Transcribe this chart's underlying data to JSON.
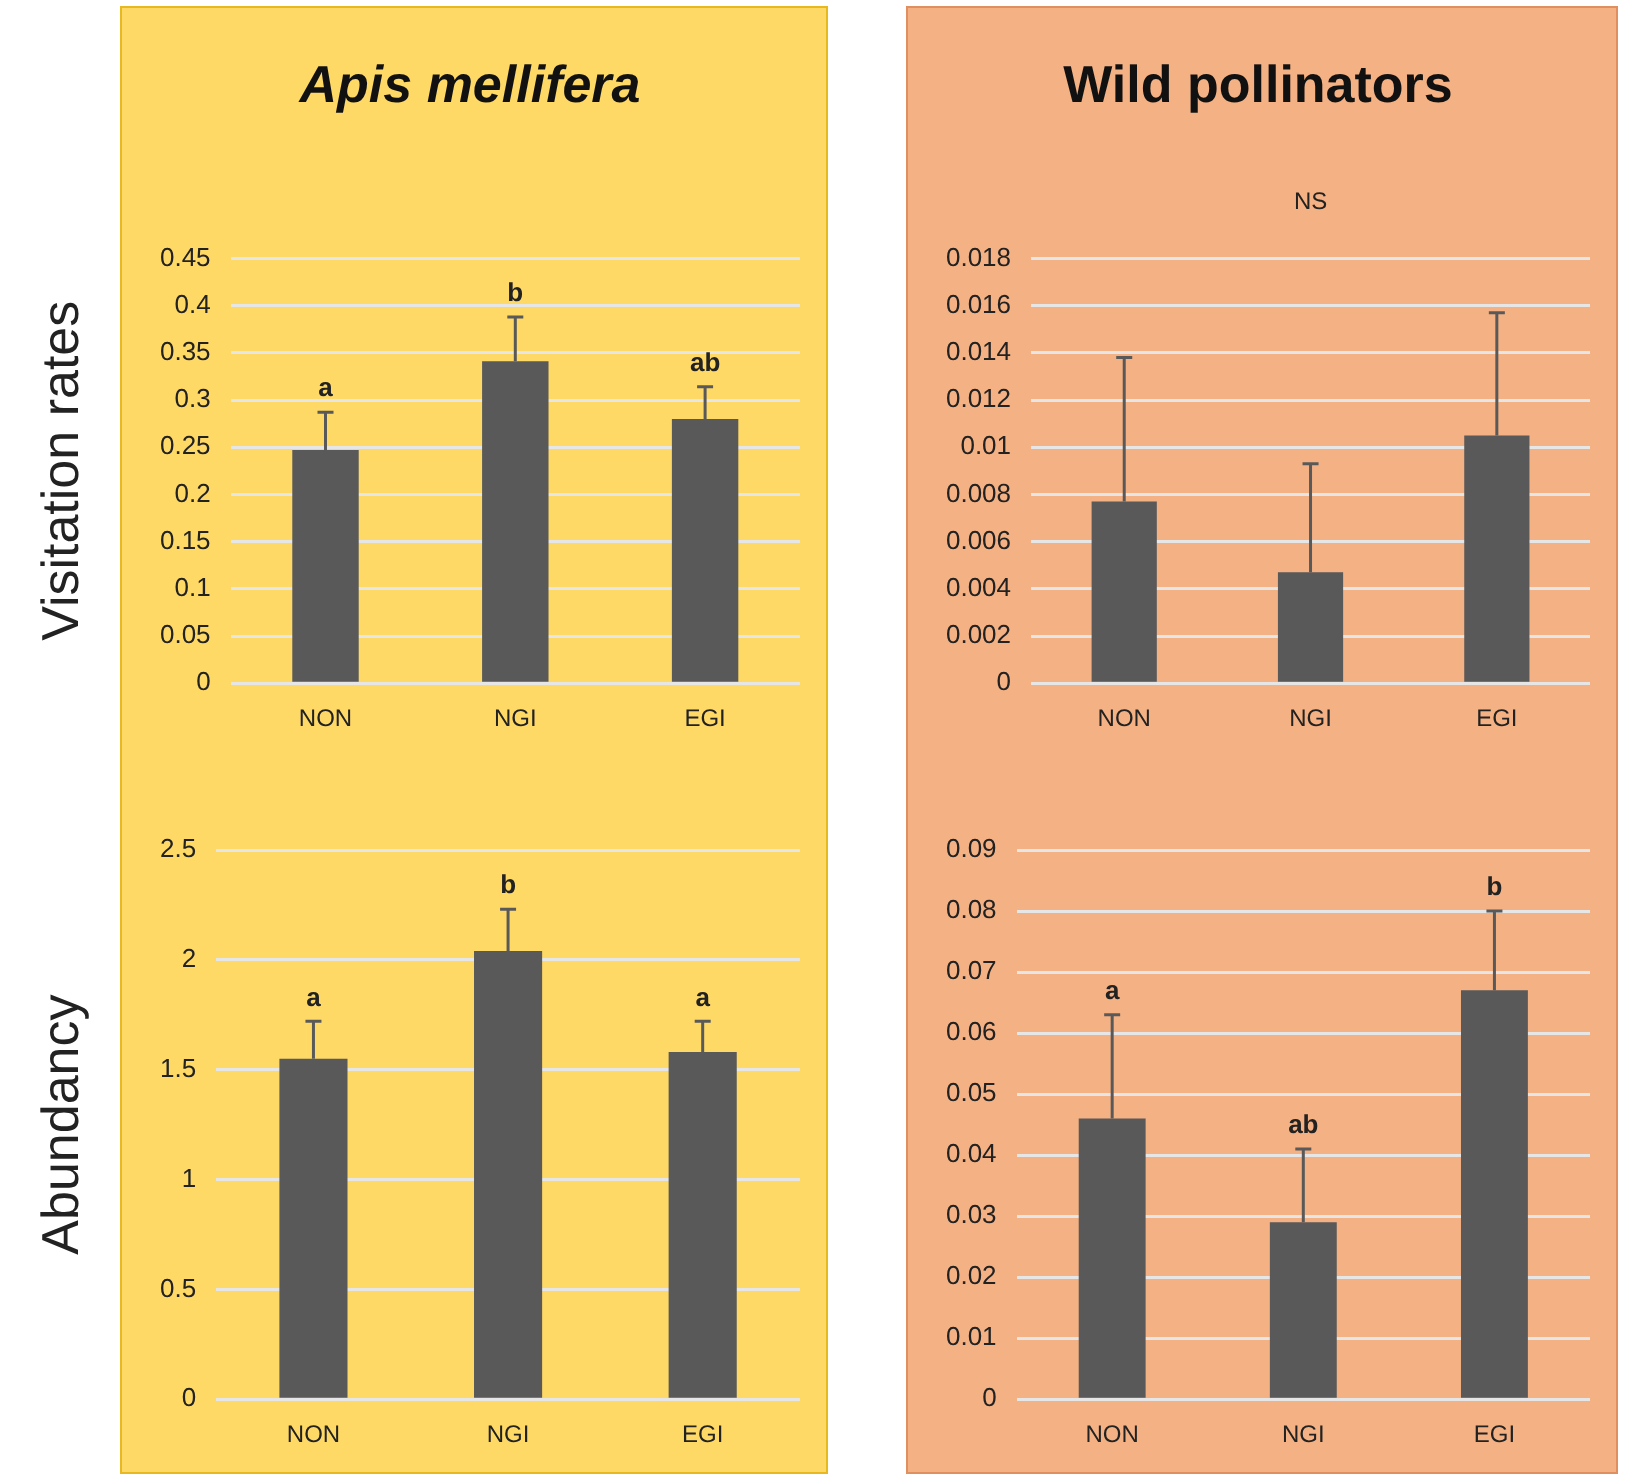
{
  "chart_data": [
    {
      "type": "bar",
      "title": "Apis mellifera",
      "ylabel": "Visitation rates",
      "categories": [
        "NON",
        "NGI",
        "EGI"
      ],
      "values": [
        0.247,
        0.341,
        0.28
      ],
      "color": "#595959",
      "errors": [
        [
          0.247,
          0.287
        ],
        [
          0.341,
          0.388
        ],
        [
          0.28,
          0.314
        ]
      ],
      "ylim": [
        0,
        0.45
      ],
      "yticks": [
        0,
        0.05,
        0.1,
        0.15,
        0.2,
        0.25,
        0.3,
        0.35,
        0.4,
        0.45
      ],
      "grid": "y",
      "annotations": [
        {
          "text": "a",
          "x": "NON",
          "y": 0.287
        },
        {
          "text": "b",
          "x": "NGI",
          "y": 0.388
        },
        {
          "text": "ab",
          "x": "EGI",
          "y": 0.314
        }
      ]
    },
    {
      "type": "bar",
      "title": "Wild pollinators",
      "categories": [
        "NON",
        "NGI",
        "EGI"
      ],
      "values": [
        0.0077,
        0.0047,
        0.0105
      ],
      "color": "#595959",
      "errors": [
        [
          0.0077,
          0.0138
        ],
        [
          0.0047,
          0.0093
        ],
        [
          0.0105,
          0.0157
        ]
      ],
      "ylim": [
        0,
        0.018
      ],
      "yticks": [
        0,
        0.002,
        0.004,
        0.006,
        0.008,
        0.01,
        0.012,
        0.014,
        0.016,
        0.018
      ],
      "grid": "y",
      "annotations": [
        "NS"
      ]
    },
    {
      "type": "bar",
      "ylabel": "Abundancy",
      "categories": [
        "NON",
        "NGI",
        "EGI"
      ],
      "values": [
        1.55,
        2.04,
        1.58
      ],
      "color": "#595959",
      "errors": [
        [
          1.55,
          1.72
        ],
        [
          2.04,
          2.23
        ],
        [
          1.58,
          1.72
        ]
      ],
      "ylim": [
        0,
        2.5
      ],
      "yticks": [
        0,
        0.5,
        1,
        1.5,
        2,
        2.5
      ],
      "grid": "y",
      "annotations": [
        {
          "text": "a",
          "x": "NON",
          "y": 1.72
        },
        {
          "text": "b",
          "x": "NGI",
          "y": 2.23
        },
        {
          "text": "a",
          "x": "EGI",
          "y": 1.72
        }
      ]
    },
    {
      "type": "bar",
      "categories": [
        "NON",
        "NGI",
        "EGI"
      ],
      "values": [
        0.046,
        0.029,
        0.067
      ],
      "color": "#595959",
      "errors": [
        [
          0.046,
          0.063
        ],
        [
          0.029,
          0.041
        ],
        [
          0.067,
          0.08
        ]
      ],
      "ylim": [
        0,
        0.09
      ],
      "yticks": [
        0,
        0.01,
        0.02,
        0.03,
        0.04,
        0.05,
        0.06,
        0.07,
        0.08,
        0.09
      ],
      "grid": "y",
      "annotations": [
        {
          "text": "a",
          "x": "NON",
          "y": 0.063
        },
        {
          "text": "ab",
          "x": "NGI",
          "y": 0.041
        },
        {
          "text": "b",
          "x": "EGI",
          "y": 0.08
        }
      ]
    }
  ]
}
